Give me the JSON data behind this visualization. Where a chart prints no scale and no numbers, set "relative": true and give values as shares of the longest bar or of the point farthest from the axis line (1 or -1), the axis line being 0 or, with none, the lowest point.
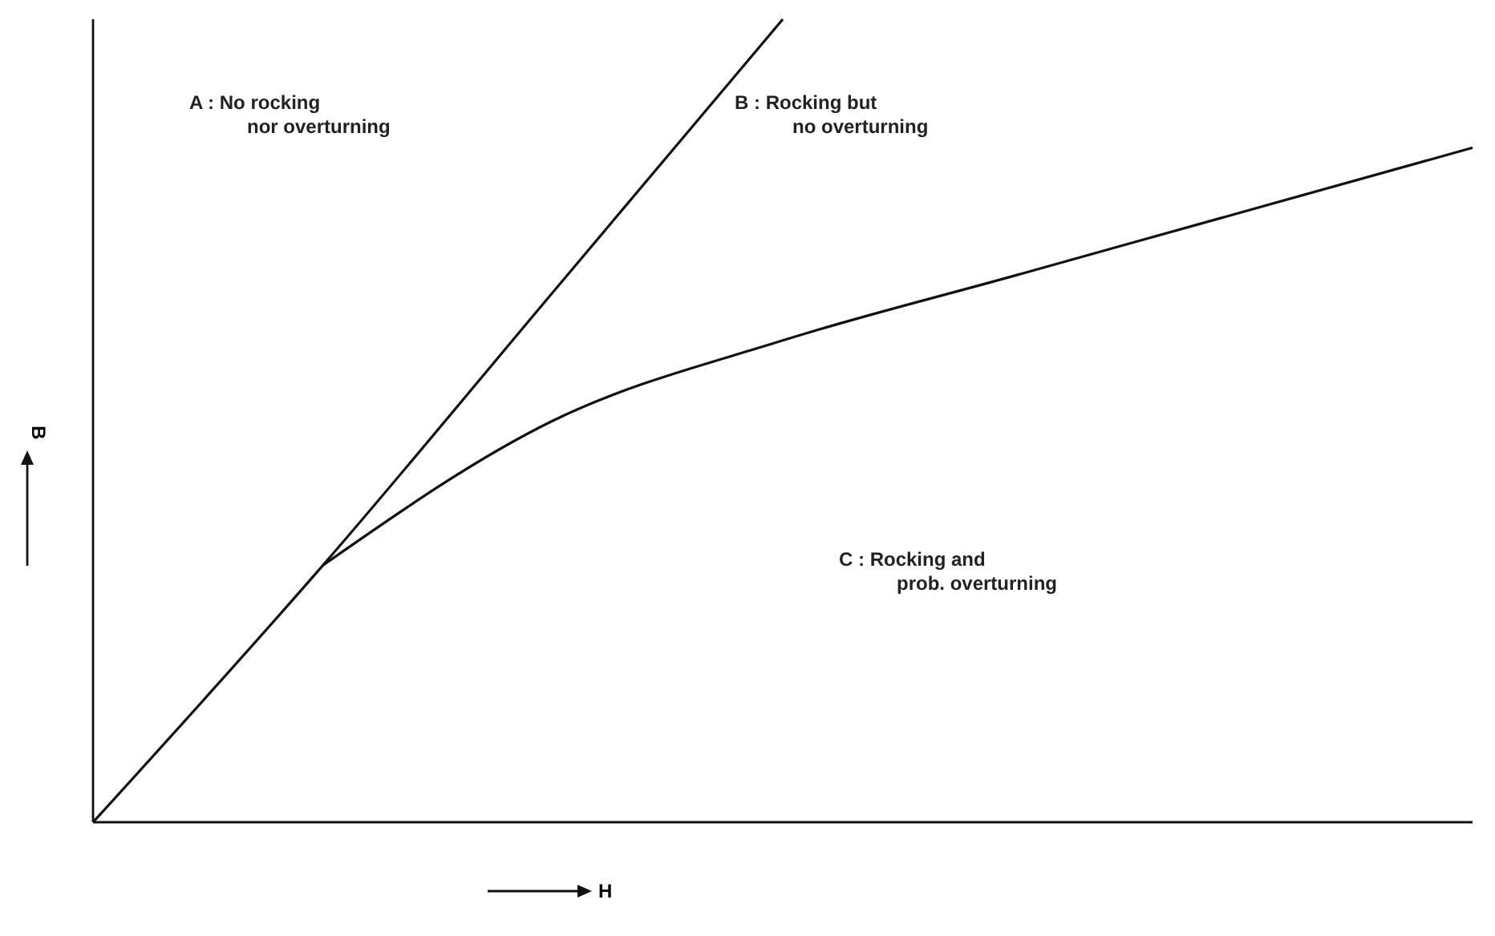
{
  "chart_data": {
    "type": "line",
    "relative": true,
    "xlabel": "H",
    "ylabel": "B",
    "categories": [
      null,
      null,
      null,
      null,
      null,
      null,
      null
    ],
    "series": [
      {
        "color": "#111111",
        "values": [
          0,
          0.32,
          0.66,
          1,
          null,
          null,
          null
        ]
      },
      {
        "color": "#111111",
        "values": [
          null,
          0.32,
          0.5,
          0.6,
          0.68,
          0.76,
          0.84
        ]
      }
    ],
    "annotations": [
      "A : No rocking\nnor overturning",
      "B : Rocking but\nno overturning",
      "C : Rocking and\nprob. overturning"
    ],
    "marker": "none",
    "line_style": "solid"
  }
}
